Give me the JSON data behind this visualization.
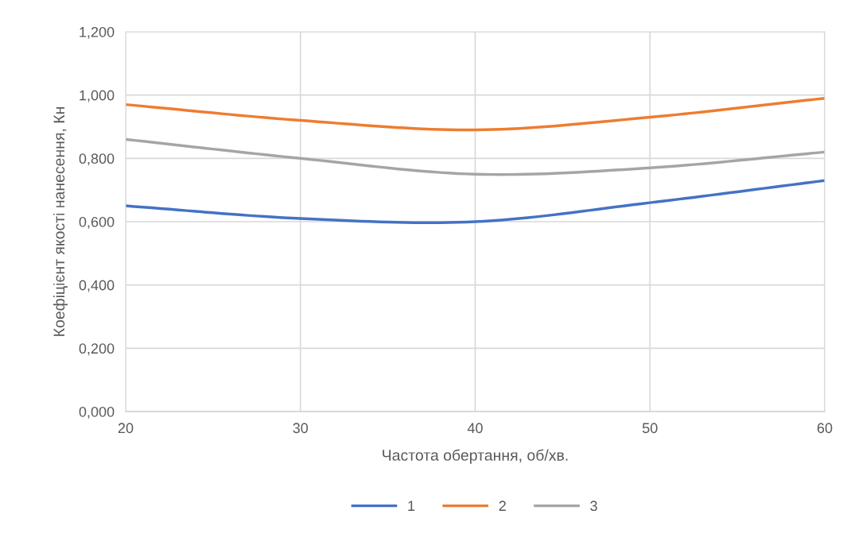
{
  "chart_data": {
    "type": "line",
    "xlabel": "Частота обертання, об/хв.",
    "ylabel": "Коефіцієнт якості нанесення, Кн",
    "x": [
      20,
      30,
      40,
      50,
      60
    ],
    "series": [
      {
        "name": "1",
        "color": "#4472c4",
        "values": [
          0.65,
          0.61,
          0.6,
          0.66,
          0.73
        ]
      },
      {
        "name": "2",
        "color": "#ed7d31",
        "values": [
          0.97,
          0.92,
          0.89,
          0.93,
          0.99
        ]
      },
      {
        "name": "3",
        "color": "#a5a5a5",
        "values": [
          0.86,
          0.8,
          0.75,
          0.77,
          0.82
        ]
      }
    ],
    "xlim": [
      20,
      60
    ],
    "xticks": [
      20,
      30,
      40,
      50,
      60
    ],
    "ylim": [
      0,
      1.2
    ],
    "yticks": [
      {
        "value": 0,
        "label": "0,000"
      },
      {
        "value": 0.2,
        "label": "0,200"
      },
      {
        "value": 0.4,
        "label": "0,400"
      },
      {
        "value": 0.6,
        "label": "0,600"
      },
      {
        "value": 0.8,
        "label": "0,800"
      },
      {
        "value": 1.0,
        "label": "1,000"
      },
      {
        "value": 1.2,
        "label": "1,200"
      }
    ],
    "grid": true,
    "legend": "bottom",
    "marker": "none",
    "line_style": "solid"
  }
}
